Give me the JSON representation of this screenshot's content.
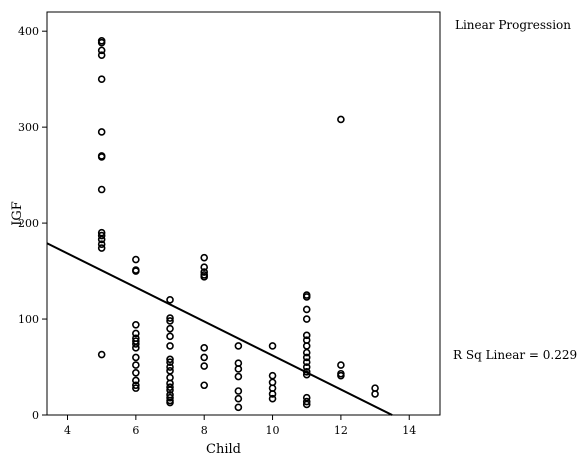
{
  "chart_data": {
    "type": "scatter",
    "xlabel": "Child",
    "ylabel": "IGF",
    "xlim": [
      3.4,
      14.9
    ],
    "ylim": [
      0,
      420
    ],
    "xticks": [
      4,
      6,
      8,
      10,
      12,
      14
    ],
    "yticks": [
      0,
      100,
      200,
      300,
      400
    ],
    "fit_label": "Linear Progression",
    "r_squared_label": "R Sq Linear = 0.229",
    "fit_line": {
      "x": [
        3.4,
        13.5
      ],
      "y": [
        179,
        0
      ]
    },
    "points": [
      {
        "x": 5,
        "y": 390
      },
      {
        "x": 5,
        "y": 388
      },
      {
        "x": 5,
        "y": 380
      },
      {
        "x": 5,
        "y": 375
      },
      {
        "x": 5,
        "y": 350
      },
      {
        "x": 5,
        "y": 295
      },
      {
        "x": 5,
        "y": 270
      },
      {
        "x": 5,
        "y": 269
      },
      {
        "x": 5,
        "y": 235
      },
      {
        "x": 5,
        "y": 190
      },
      {
        "x": 5,
        "y": 187
      },
      {
        "x": 5,
        "y": 183
      },
      {
        "x": 5,
        "y": 178
      },
      {
        "x": 5,
        "y": 174
      },
      {
        "x": 5,
        "y": 63
      },
      {
        "x": 6,
        "y": 162
      },
      {
        "x": 6,
        "y": 151
      },
      {
        "x": 6,
        "y": 150
      },
      {
        "x": 6,
        "y": 94
      },
      {
        "x": 6,
        "y": 85
      },
      {
        "x": 6,
        "y": 80
      },
      {
        "x": 6,
        "y": 77
      },
      {
        "x": 6,
        "y": 74
      },
      {
        "x": 6,
        "y": 70
      },
      {
        "x": 6,
        "y": 60
      },
      {
        "x": 6,
        "y": 52
      },
      {
        "x": 6,
        "y": 44
      },
      {
        "x": 6,
        "y": 36
      },
      {
        "x": 6,
        "y": 31
      },
      {
        "x": 6,
        "y": 28
      },
      {
        "x": 7,
        "y": 120
      },
      {
        "x": 7,
        "y": 101
      },
      {
        "x": 7,
        "y": 98
      },
      {
        "x": 7,
        "y": 90
      },
      {
        "x": 7,
        "y": 82
      },
      {
        "x": 7,
        "y": 72
      },
      {
        "x": 7,
        "y": 58
      },
      {
        "x": 7,
        "y": 55
      },
      {
        "x": 7,
        "y": 50
      },
      {
        "x": 7,
        "y": 46
      },
      {
        "x": 7,
        "y": 39
      },
      {
        "x": 7,
        "y": 33
      },
      {
        "x": 7,
        "y": 29
      },
      {
        "x": 7,
        "y": 26
      },
      {
        "x": 7,
        "y": 21
      },
      {
        "x": 7,
        "y": 18
      },
      {
        "x": 7,
        "y": 15
      },
      {
        "x": 7,
        "y": 13
      },
      {
        "x": 8,
        "y": 164
      },
      {
        "x": 8,
        "y": 154
      },
      {
        "x": 8,
        "y": 149
      },
      {
        "x": 8,
        "y": 146
      },
      {
        "x": 8,
        "y": 144
      },
      {
        "x": 8,
        "y": 70
      },
      {
        "x": 8,
        "y": 60
      },
      {
        "x": 8,
        "y": 51
      },
      {
        "x": 8,
        "y": 31
      },
      {
        "x": 9,
        "y": 72
      },
      {
        "x": 9,
        "y": 54
      },
      {
        "x": 9,
        "y": 48
      },
      {
        "x": 9,
        "y": 40
      },
      {
        "x": 9,
        "y": 25
      },
      {
        "x": 9,
        "y": 17
      },
      {
        "x": 9,
        "y": 8
      },
      {
        "x": 10,
        "y": 72
      },
      {
        "x": 10,
        "y": 41
      },
      {
        "x": 10,
        "y": 34
      },
      {
        "x": 10,
        "y": 28
      },
      {
        "x": 10,
        "y": 22
      },
      {
        "x": 10,
        "y": 17
      },
      {
        "x": 11,
        "y": 125
      },
      {
        "x": 11,
        "y": 123
      },
      {
        "x": 11,
        "y": 110
      },
      {
        "x": 11,
        "y": 100
      },
      {
        "x": 11,
        "y": 83
      },
      {
        "x": 11,
        "y": 78
      },
      {
        "x": 11,
        "y": 72
      },
      {
        "x": 11,
        "y": 65
      },
      {
        "x": 11,
        "y": 60
      },
      {
        "x": 11,
        "y": 55
      },
      {
        "x": 11,
        "y": 50
      },
      {
        "x": 11,
        "y": 45
      },
      {
        "x": 11,
        "y": 42
      },
      {
        "x": 11,
        "y": 18
      },
      {
        "x": 11,
        "y": 14
      },
      {
        "x": 11,
        "y": 11
      },
      {
        "x": 12,
        "y": 308
      },
      {
        "x": 12,
        "y": 52
      },
      {
        "x": 12,
        "y": 43
      },
      {
        "x": 12,
        "y": 41
      },
      {
        "x": 13,
        "y": 28
      },
      {
        "x": 13,
        "y": 22
      }
    ]
  }
}
